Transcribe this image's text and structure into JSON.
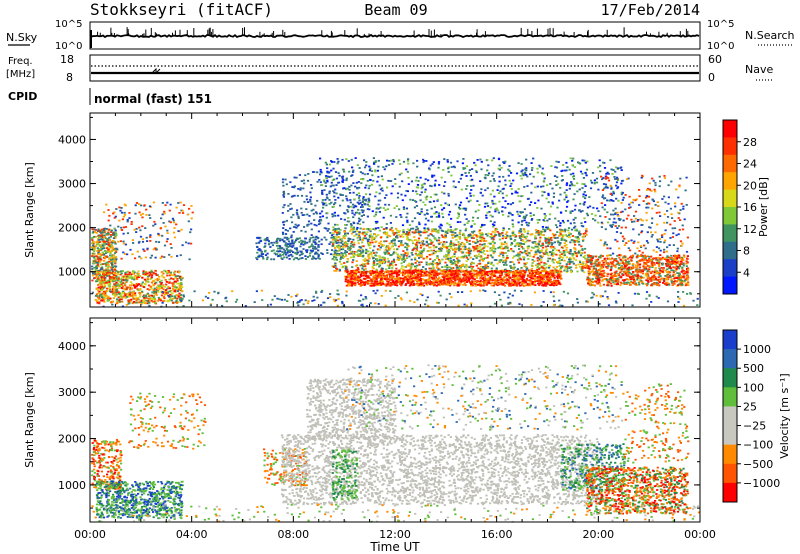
{
  "header": {
    "station": "Stokkseyri (fitACF)",
    "beam": "Beam 09",
    "date": "17/Feb/2014"
  },
  "nsky": {
    "left_label": "N.Sky",
    "right_label": "N.Search",
    "tick_top": "10^5",
    "tick_bottom": "10^0"
  },
  "freq": {
    "label_top": "Freq.",
    "label_unit": "[MHz]",
    "tick_top_left": "18",
    "tick_bottom_left": "8",
    "tick_top_right": "60",
    "tick_bottom_right": "0",
    "right_label": "Nave"
  },
  "cpid": {
    "label": "CPID",
    "text": "normal (fast) 151"
  },
  "colors": {
    "power_scale": [
      "#0018ff",
      "#1a40c8",
      "#2f6e8a",
      "#3f9460",
      "#7fc837",
      "#d8d81a",
      "#ffa500",
      "#ff6a00",
      "#ff3000",
      "#ff0000"
    ],
    "velocity_scale": [
      "#1a3ecc",
      "#2d69b3",
      "#1f8a4b",
      "#5fbf3a",
      "#c8c8c0",
      "#c8c8c0",
      "#ff8a00",
      "#ff5500",
      "#ff0000"
    ],
    "ground_scatter": "#c0c0b8"
  },
  "chart_data": [
    {
      "type": "heatmap",
      "name": "power-panel",
      "ylabel": "Slant Range [km]",
      "yticks": [
        "1000",
        "2000",
        "3000",
        "4000"
      ],
      "ylim": [
        200,
        4600
      ],
      "colorbar": {
        "label": "Power [dB]",
        "ticks": [
          "4",
          "8",
          "12",
          "16",
          "20",
          "24",
          "28"
        ],
        "range": [
          0,
          32
        ]
      }
    },
    {
      "type": "heatmap",
      "name": "velocity-panel",
      "ylabel": "Slant Range [km]",
      "yticks": [
        "1000",
        "2000",
        "3000",
        "4000"
      ],
      "ylim": [
        200,
        4600
      ],
      "colorbar": {
        "label": "Velocity [m s⁻¹]",
        "ticks": [
          "1000",
          "500",
          "100",
          "25",
          "−25",
          "−100",
          "−500",
          "−1000"
        ]
      }
    }
  ],
  "xaxis": {
    "label": "Time UT",
    "ticks": [
      "00:00",
      "04:00",
      "08:00",
      "12:00",
      "16:00",
      "20:00",
      "00:00"
    ],
    "xlim_hours": [
      0,
      24
    ]
  }
}
